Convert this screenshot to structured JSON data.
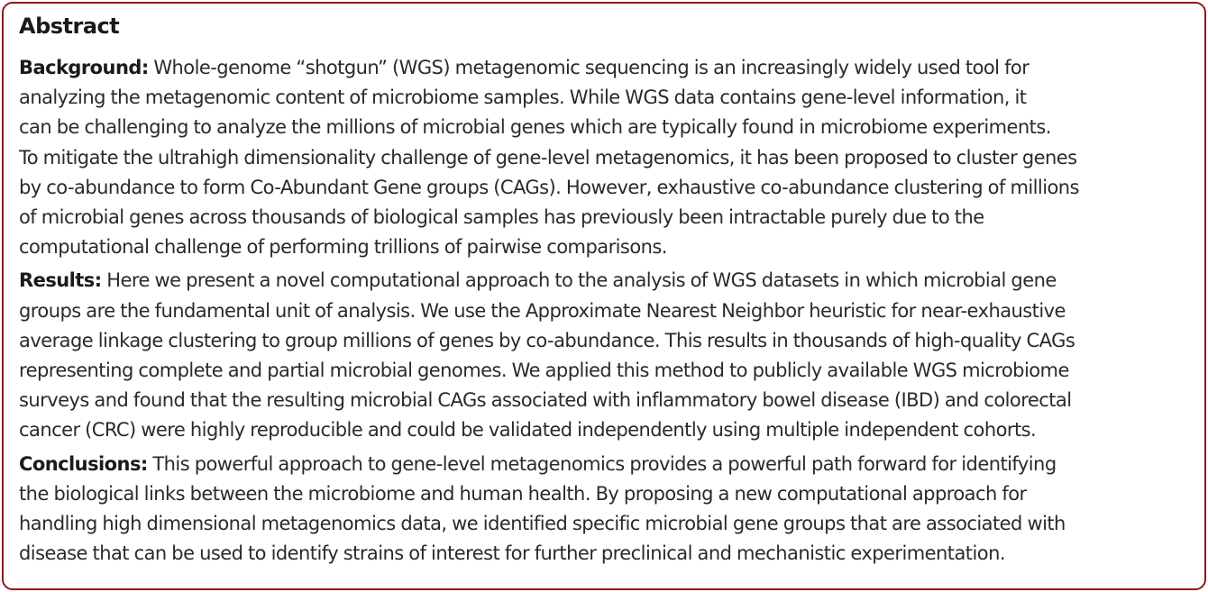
{
  "abstract": {
    "title": "Abstract",
    "sections": [
      {
        "label": "Background:",
        "lines": [
          " Whole-genome “shotgun” (WGS) metagenomic sequencing is an increasingly widely used tool for",
          "analyzing the metagenomic content of microbiome samples. While WGS data contains gene-level information, it",
          "can be challenging to analyze the millions of microbial genes which are typically found in microbiome experiments.",
          "To mitigate the ultrahigh dimensionality challenge of gene-level metagenomics, it has been proposed to cluster genes",
          "by co-abundance to form Co-Abundant Gene groups (CAGs). However, exhaustive co-abundance clustering of millions",
          "of microbial genes across thousands of biological samples has previously been intractable purely due to the",
          "computational challenge of performing trillions of pairwise comparisons."
        ]
      },
      {
        "label": "Results:",
        "lines": [
          " Here we present a novel computational approach to the analysis of WGS datasets in which microbial gene",
          "groups are the fundamental unit of analysis. We use the Approximate Nearest Neighbor heuristic for near-exhaustive",
          "average linkage clustering to group millions of genes by co-abundance. This results in thousands of high-quality CAGs",
          "representing complete and partial microbial genomes. We applied this method to publicly available WGS microbiome",
          "surveys and found that the resulting microbial CAGs associated with inflammatory bowel disease (IBD) and colorectal",
          "cancer (CRC) were highly reproducible and could be validated independently using multiple independent cohorts."
        ]
      },
      {
        "label": "Conclusions:",
        "lines": [
          " This powerful approach to gene-level metagenomics provides a powerful path forward for identifying",
          "the biological links between the microbiome and human health. By proposing a new computational approach for",
          "handling high dimensional metagenomics data, we identified specific microbial gene groups that are associated with",
          "disease that can be used to identify strains of interest for further preclinical and mechanistic experimentation."
        ]
      }
    ]
  }
}
